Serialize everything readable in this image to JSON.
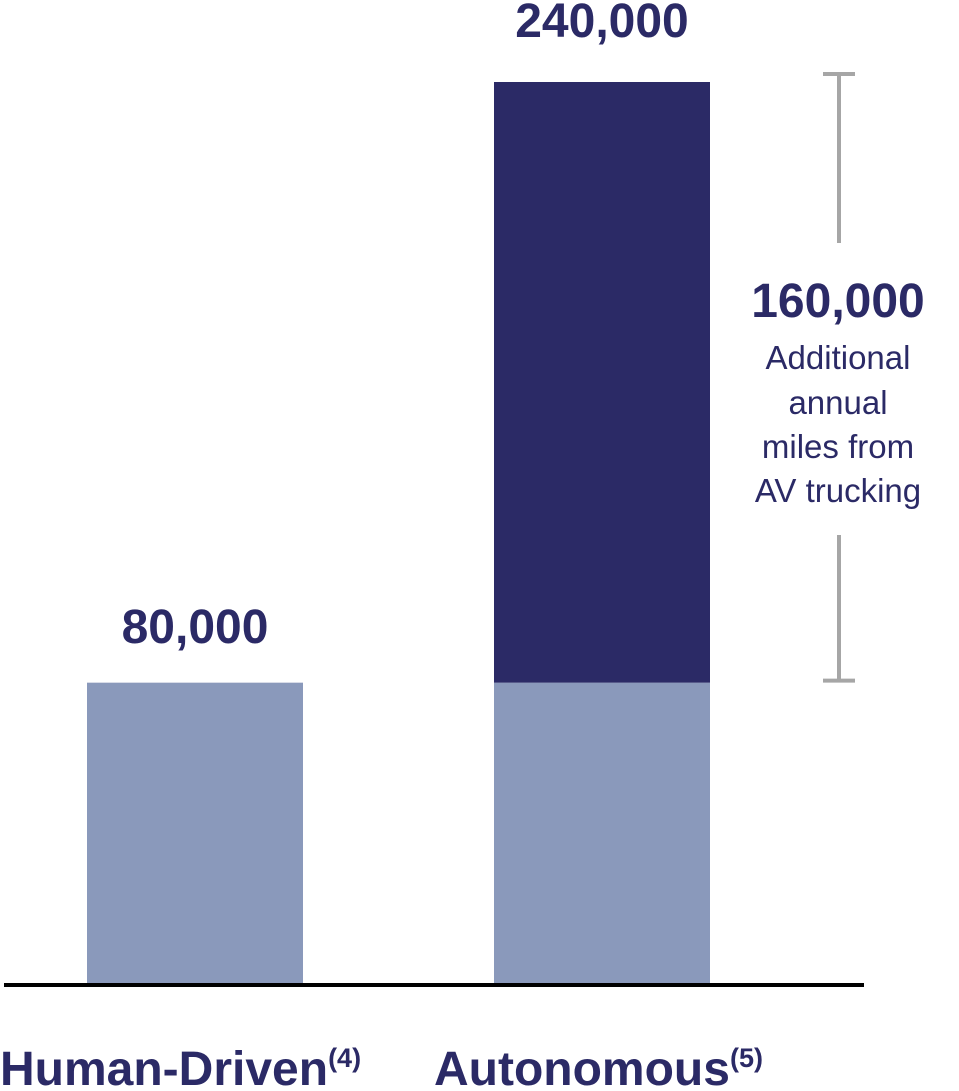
{
  "chart_data": {
    "type": "bar",
    "stacked": true,
    "categories": [
      "Human-Driven",
      "Autonomous"
    ],
    "category_superscripts": [
      "(4)",
      "(5)"
    ],
    "series": [
      {
        "values": [
          80000,
          80000
        ],
        "color": "#8a99bb"
      },
      {
        "values": [
          0,
          160000
        ],
        "color": "#2b2a66"
      }
    ],
    "totals": [
      80000,
      240000
    ],
    "value_labels": [
      "80,000",
      "240,000"
    ],
    "annotation": {
      "value_label": "160,000",
      "lines": [
        "Additional",
        "annual",
        "miles from",
        "AV trucking"
      ],
      "from_value": 80000,
      "to_value": 240000
    },
    "ylim": [
      0,
      240000
    ],
    "grid": false,
    "colors": {
      "base": "#8a99bb",
      "additional": "#2b2a66",
      "text": "#2b2a66",
      "bracket": "#a6a6a6",
      "axis": "#000000"
    }
  }
}
